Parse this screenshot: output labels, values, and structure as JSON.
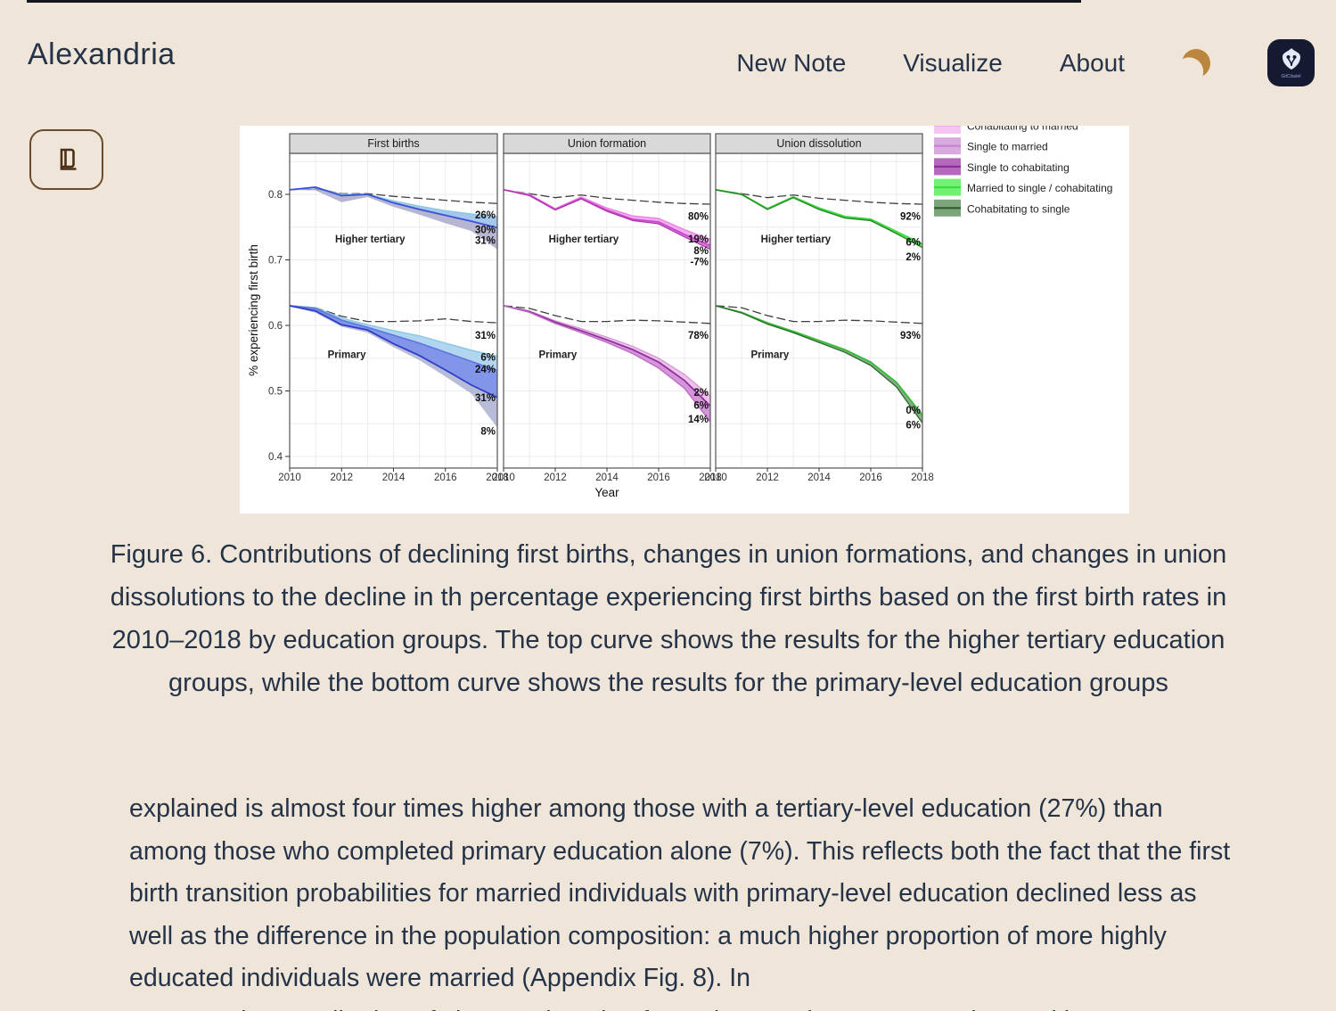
{
  "header": {
    "brand": "Alexandria",
    "nav": [
      {
        "label": "New Note"
      },
      {
        "label": "Visualize"
      },
      {
        "label": "About"
      }
    ],
    "theme_icon": "crescent-moon",
    "moon_color": "#B9853F",
    "logo_text": "GitCitadel",
    "logo_bg": "#151A30"
  },
  "sidebar": {
    "reader_button_icon": "book"
  },
  "figure": {
    "chart_data": {
      "type": "line",
      "x": [
        2010,
        2011,
        2012,
        2013,
        2014,
        2015,
        2016,
        2017,
        2018
      ],
      "xlabel": "Year",
      "ylabel": "% experiencing first birth",
      "yticks": [
        0.4,
        0.5,
        0.6,
        0.7,
        0.8
      ],
      "ylim": [
        0.382,
        0.862
      ],
      "grid": "on",
      "legend_position": "top-right",
      "panels": [
        {
          "title": "First births",
          "clusters": [
            {
              "name": "Higher tertiary",
              "name_pos": {
                "year": 2013.1,
                "v": 0.732
              },
              "series": [
                {
                  "id": "counterfactual",
                  "color": "#3f3f3f",
                  "width": 1.3,
                  "dash": "10,4",
                  "values": [
                    0.807,
                    0.809,
                    0.801,
                    0.801,
                    0.797,
                    0.794,
                    0.791,
                    0.788,
                    0.786
                  ],
                  "label": {
                    "text": "26%",
                    "v": 0.769
                  }
                },
                {
                  "id": "cohabiting-rate",
                  "color": "#8ECAE6",
                  "width": 1.6,
                  "values": [
                    0.807,
                    0.81,
                    0.8,
                    0.8,
                    0.79,
                    0.782,
                    0.775,
                    0.77,
                    0.766
                  ],
                  "label": {
                    "text": "30%",
                    "v": 0.746
                  }
                },
                {
                  "id": "married-rate",
                  "color": "#3B4FD8",
                  "width": 1.8,
                  "values": [
                    0.807,
                    0.811,
                    0.798,
                    0.8,
                    0.787,
                    0.777,
                    0.768,
                    0.759,
                    0.749
                  ],
                  "label": {
                    "text": "31%",
                    "v": 0.73
                  }
                },
                {
                  "id": "band-edge",
                  "color": "none",
                  "width": 0,
                  "values": [
                    0.807,
                    0.806,
                    0.788,
                    0.796,
                    0.781,
                    0.769,
                    0.756,
                    0.744,
                    0.716
                  ]
                }
              ],
              "bands": [
                {
                  "upper": 1,
                  "lower": 2,
                  "fill": "#9CC1EA",
                  "opacity": 0.9
                },
                {
                  "upper": 2,
                  "lower": 3,
                  "fill": "#A9A9CB",
                  "opacity": 0.85
                }
              ]
            },
            {
              "name": "Primary",
              "name_pos": {
                "year": 2012.2,
                "v": 0.556
              },
              "series": [
                {
                  "id": "counterfactual",
                  "color": "#3f3f3f",
                  "width": 1.3,
                  "dash": "10,4",
                  "values": [
                    0.63,
                    0.627,
                    0.614,
                    0.606,
                    0.606,
                    0.607,
                    0.61,
                    0.606,
                    0.604
                  ],
                  "label": {
                    "text": "31%",
                    "v": 0.585
                  }
                },
                {
                  "id": "cohabiting-rate",
                  "color": "#8ECAE6",
                  "width": 1.6,
                  "values": [
                    0.63,
                    0.627,
                    0.611,
                    0.601,
                    0.592,
                    0.584,
                    0.573,
                    0.562,
                    0.553
                  ],
                  "label": {
                    "text": "6%",
                    "v": 0.552
                  }
                },
                {
                  "id": "mid-rate",
                  "color": "#5B76DD",
                  "width": 1.6,
                  "values": [
                    0.63,
                    0.626,
                    0.608,
                    0.597,
                    0.585,
                    0.573,
                    0.559,
                    0.545,
                    0.531
                  ],
                  "label": {
                    "text": "24%",
                    "v": 0.533
                  }
                },
                {
                  "id": "married-rate",
                  "color": "#2E3EC8",
                  "width": 1.8,
                  "values": [
                    0.63,
                    0.622,
                    0.601,
                    0.593,
                    0.572,
                    0.554,
                    0.532,
                    0.509,
                    0.49
                  ],
                  "label": {
                    "text": "31%",
                    "v": 0.49
                  }
                },
                {
                  "id": "band-edge",
                  "color": "none",
                  "width": 0,
                  "values": [
                    0.63,
                    0.619,
                    0.598,
                    0.589,
                    0.567,
                    0.547,
                    0.522,
                    0.496,
                    0.444
                  ],
                  "label": {
                    "text": "8%",
                    "v": 0.439
                  }
                }
              ],
              "bands": [
                {
                  "upper": 1,
                  "lower": 2,
                  "fill": "#AED4EE",
                  "opacity": 0.95
                },
                {
                  "upper": 2,
                  "lower": 3,
                  "fill": "#7B8FE8",
                  "opacity": 0.95
                },
                {
                  "upper": 3,
                  "lower": 4,
                  "fill": "#9AA0C8",
                  "opacity": 0.7
                }
              ]
            }
          ]
        },
        {
          "title": "Union formation",
          "clusters": [
            {
              "name": "Higher tertiary",
              "name_pos": {
                "year": 2013.1,
                "v": 0.732
              },
              "series": [
                {
                  "id": "counterfactual",
                  "color": "#3f3f3f",
                  "width": 1.3,
                  "dash": "10,4",
                  "values": [
                    0.807,
                    0.801,
                    0.795,
                    0.799,
                    0.794,
                    0.791,
                    0.788,
                    0.786,
                    0.785
                  ],
                  "label": {
                    "text": "80%",
                    "v": 0.767
                  }
                },
                {
                  "id": "single-to-married",
                  "color": "#EC86E6",
                  "width": 1.6,
                  "values": [
                    0.807,
                    0.8,
                    0.778,
                    0.796,
                    0.779,
                    0.767,
                    0.763,
                    0.746,
                    0.731
                  ],
                  "label": {
                    "text": "19%",
                    "v": 0.732
                  }
                },
                {
                  "id": "single-to-cohabitating",
                  "color": "#CC44CC",
                  "width": 1.6,
                  "values": [
                    0.807,
                    0.799,
                    0.777,
                    0.794,
                    0.776,
                    0.762,
                    0.758,
                    0.739,
                    0.722
                  ],
                  "label": {
                    "text": "8%",
                    "v": 0.714
                  }
                },
                {
                  "id": "cohabitating-to-married",
                  "color": "#AA33AA",
                  "width": 1.2,
                  "values": [
                    0.807,
                    0.798,
                    0.776,
                    0.793,
                    0.774,
                    0.76,
                    0.755,
                    0.735,
                    0.716
                  ],
                  "label": {
                    "text": "-7%",
                    "v": 0.697
                  }
                }
              ],
              "bands": [
                {
                  "upper": 1,
                  "lower": 2,
                  "fill": "#F0A8EE",
                  "opacity": 0.9
                },
                {
                  "upper": 2,
                  "lower": 3,
                  "fill": "#CF5FD0",
                  "opacity": 0.85
                }
              ]
            },
            {
              "name": "Primary",
              "name_pos": {
                "year": 2012.1,
                "v": 0.556
              },
              "series": [
                {
                  "id": "counterfactual",
                  "color": "#3f3f3f",
                  "width": 1.3,
                  "dash": "10,4",
                  "values": [
                    0.63,
                    0.626,
                    0.615,
                    0.606,
                    0.606,
                    0.608,
                    0.607,
                    0.605,
                    0.603
                  ],
                  "label": {
                    "text": "78%",
                    "v": 0.585
                  }
                },
                {
                  "id": "single-to-married",
                  "color": "#D79AD9",
                  "width": 1.4,
                  "values": [
                    0.63,
                    0.622,
                    0.607,
                    0.595,
                    0.582,
                    0.568,
                    0.55,
                    0.525,
                    0.492
                  ],
                  "label": {
                    "text": "2%",
                    "v": 0.498
                  }
                },
                {
                  "id": "single-to-cohabitating",
                  "color": "#8B2F96",
                  "width": 1.7,
                  "values": [
                    0.63,
                    0.621,
                    0.605,
                    0.592,
                    0.578,
                    0.563,
                    0.544,
                    0.516,
                    0.477
                  ],
                  "label": {
                    "text": "6%",
                    "v": 0.478
                  }
                },
                {
                  "id": "cohabitating-to-married",
                  "color": "#C06AC6",
                  "width": 1.4,
                  "values": [
                    0.63,
                    0.62,
                    0.603,
                    0.589,
                    0.574,
                    0.557,
                    0.535,
                    0.504,
                    0.453
                  ],
                  "label": {
                    "text": "14%",
                    "v": 0.457
                  }
                }
              ],
              "bands": [
                {
                  "upper": 1,
                  "lower": 2,
                  "fill": "#EDB9EC",
                  "opacity": 0.9
                },
                {
                  "upper": 2,
                  "lower": 3,
                  "fill": "#D08AD6",
                  "opacity": 0.9
                }
              ]
            }
          ]
        },
        {
          "title": "Union dissolution",
          "clusters": [
            {
              "name": "Higher tertiary",
              "name_pos": {
                "year": 2013.1,
                "v": 0.732
              },
              "series": [
                {
                  "id": "counterfactual",
                  "color": "#3f3f3f",
                  "width": 1.3,
                  "dash": "10,4",
                  "values": [
                    0.807,
                    0.801,
                    0.795,
                    0.799,
                    0.794,
                    0.791,
                    0.788,
                    0.786,
                    0.785
                  ],
                  "label": {
                    "text": "92%",
                    "v": 0.767
                  }
                },
                {
                  "id": "married-to-single",
                  "color": "#3BDB3B",
                  "width": 2,
                  "values": [
                    0.807,
                    0.8,
                    0.778,
                    0.796,
                    0.779,
                    0.766,
                    0.762,
                    0.743,
                    0.724
                  ],
                  "label": {
                    "text": "6%",
                    "v": 0.727
                  }
                },
                {
                  "id": "cohabitating-to-single",
                  "color": "#2E8B2E",
                  "width": 1.5,
                  "values": [
                    0.807,
                    0.8,
                    0.777,
                    0.795,
                    0.777,
                    0.764,
                    0.76,
                    0.74,
                    0.719
                  ],
                  "label": {
                    "text": "2%",
                    "v": 0.705
                  }
                }
              ],
              "bands": [
                {
                  "upper": 1,
                  "lower": 2,
                  "fill": "#66E866",
                  "opacity": 0.8
                }
              ]
            },
            {
              "name": "Primary",
              "name_pos": {
                "year": 2012.1,
                "v": 0.556
              },
              "series": [
                {
                  "id": "counterfactual",
                  "color": "#3f3f3f",
                  "width": 1.3,
                  "dash": "10,4",
                  "values": [
                    0.63,
                    0.627,
                    0.615,
                    0.606,
                    0.606,
                    0.608,
                    0.607,
                    0.605,
                    0.603
                  ],
                  "label": {
                    "text": "93%",
                    "v": 0.585
                  }
                },
                {
                  "id": "married-to-single",
                  "color": "#33BB33",
                  "width": 1.7,
                  "values": [
                    0.63,
                    0.62,
                    0.604,
                    0.591,
                    0.577,
                    0.563,
                    0.544,
                    0.513,
                    0.463
                  ],
                  "label": {
                    "text": "0%",
                    "v": 0.471
                  }
                },
                {
                  "id": "cohabitating-to-single",
                  "color": "#2D6E2D",
                  "width": 1.4,
                  "values": [
                    0.63,
                    0.619,
                    0.602,
                    0.589,
                    0.574,
                    0.559,
                    0.539,
                    0.506,
                    0.451
                  ],
                  "label": {
                    "text": "6%",
                    "v": 0.448
                  }
                }
              ],
              "bands": [
                {
                  "upper": 1,
                  "lower": 2,
                  "fill": "#7DA57C",
                  "opacity": 0.9
                }
              ]
            }
          ]
        }
      ],
      "legend": [
        {
          "label": "Cohabitating to married",
          "fill": "#F6C4F2",
          "line": "#EE9AE8",
          "clipped": true
        },
        {
          "label": "Single to married",
          "fill": "#D9AADE",
          "line": "#C77FD0"
        },
        {
          "label": "Single to cohabitating",
          "fill": "#B569BD",
          "line": "#8B2F96"
        },
        {
          "label": "Married to single / cohabitating",
          "fill": "#72F272",
          "line": "#3DDC3D"
        },
        {
          "label": "Cohabitating to single",
          "fill": "#7DA57C",
          "line": "#2E5C2E"
        }
      ]
    }
  },
  "caption": "Figure 6. Contributions of declining first births, changes in union formations, and changes in union dissolutions to the decline in th percentage experiencing first births based on the first birth rates in 2010–2018 by education groups. The top curve shows the results for the higher tertiary education groups, while the bottom curve shows the results for the primary-level education groups",
  "body": {
    "paragraph": "explained is almost four times higher among those with a tertiary-level education (27%) than among those who completed primary education alone (7%). This reflects both the fact that the first birth transition probabilities for married individuals with primary-level education declined less as well as the difference in the population composition: a much higher proportion of more highly educated individuals were married (Appendix Fig. 8). In",
    "clipped_line": "contrast, the contribution of changes in union formation was larger among those with"
  }
}
